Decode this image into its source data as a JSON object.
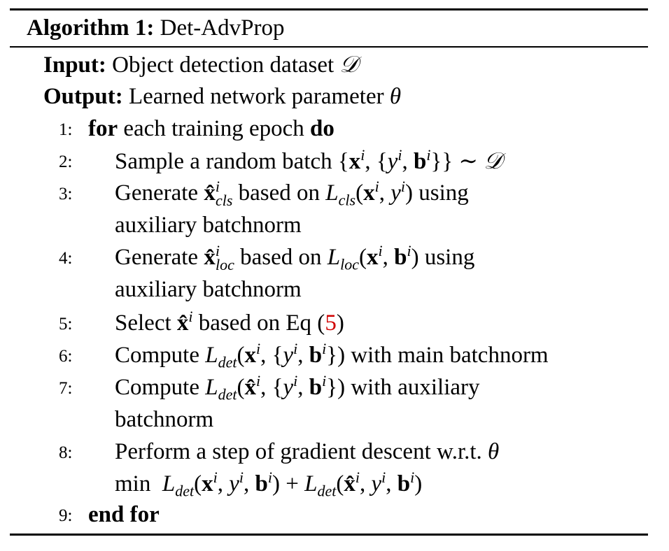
{
  "algorithm": {
    "title_prefix": "Algorithm 1:",
    "title_name": "Det-AdvProp",
    "input_label": "Input:",
    "input_text": "Object detection dataset",
    "output_label": "Output:",
    "output_text": "Learned network parameter",
    "steps": {
      "s1": {
        "num": "1:",
        "kw1": "for",
        "text": " each training epoch ",
        "kw2": "do"
      },
      "s2": {
        "num": "2:",
        "text": "Sample a random batch"
      },
      "s3": {
        "num": "3:",
        "a": "Generate",
        "b": "based on",
        "c": "using",
        "cont": "auxiliary batchnorm"
      },
      "s4": {
        "num": "4:",
        "a": "Generate",
        "b": "based on",
        "c": "using",
        "cont": "auxiliary batchnorm"
      },
      "s5": {
        "num": "5:",
        "a": "Select",
        "b": "based on Eq (",
        "ref": "5",
        "c": ")"
      },
      "s6": {
        "num": "6:",
        "a": "Compute",
        "b": "with main batchnorm"
      },
      "s7": {
        "num": "7:",
        "a": "Compute",
        "b": "with auxiliary",
        "cont": "batchnorm"
      },
      "s8": {
        "num": "8:",
        "a": "Perform a step of gradient descent w.r.t.",
        "cont": "min"
      },
      "s9": {
        "num": "9:",
        "kw": "end for"
      }
    }
  }
}
